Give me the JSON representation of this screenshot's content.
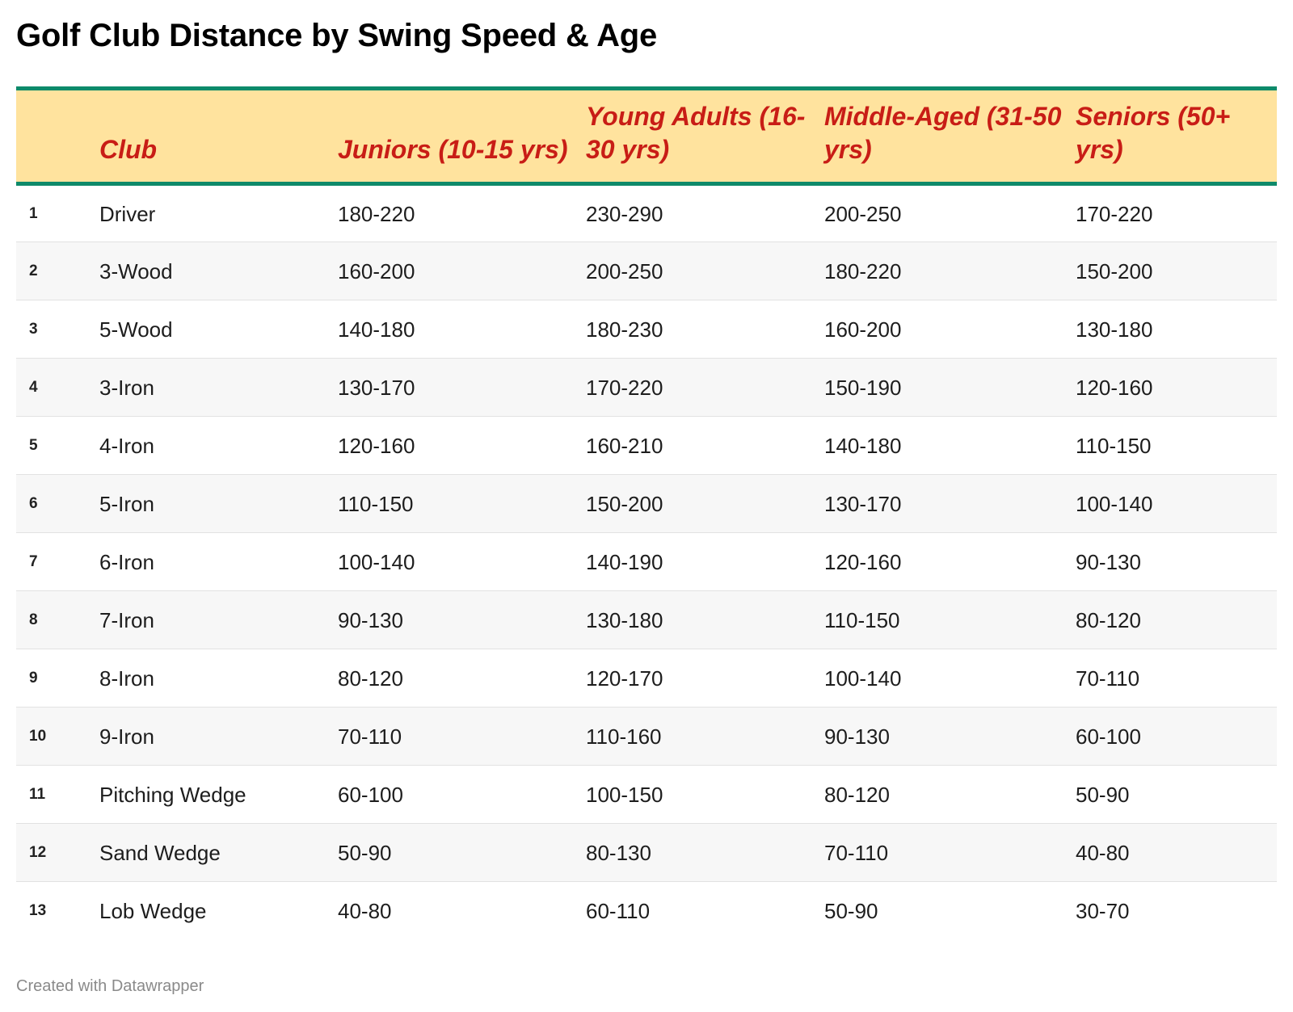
{
  "title": "Golf Club Distance by Swing Speed & Age",
  "credit": "Created with Datawrapper",
  "colors": {
    "header_background": "#ffe39e",
    "header_text": "#c81d16",
    "header_rule": "#0e8a6a",
    "row_stripe": "#f7f7f7"
  },
  "chart_data": {
    "type": "table",
    "title": "Golf Club Distance by Swing Speed & Age",
    "columns": [
      "",
      "Club",
      "Juniors (10-15 yrs)",
      "Young Adults (16-30 yrs)",
      "Middle-Aged (31-50 yrs)",
      "Seniors (50+ yrs)"
    ],
    "rows": [
      [
        "1",
        "Driver",
        "180-220",
        "230-290",
        "200-250",
        "170-220"
      ],
      [
        "2",
        "3-Wood",
        "160-200",
        "200-250",
        "180-220",
        "150-200"
      ],
      [
        "3",
        "5-Wood",
        "140-180",
        "180-230",
        "160-200",
        "130-180"
      ],
      [
        "4",
        "3-Iron",
        "130-170",
        "170-220",
        "150-190",
        "120-160"
      ],
      [
        "5",
        "4-Iron",
        "120-160",
        "160-210",
        "140-180",
        "110-150"
      ],
      [
        "6",
        "5-Iron",
        "110-150",
        "150-200",
        "130-170",
        "100-140"
      ],
      [
        "7",
        "6-Iron",
        "100-140",
        "140-190",
        "120-160",
        "90-130"
      ],
      [
        "8",
        "7-Iron",
        "90-130",
        "130-180",
        "110-150",
        "80-120"
      ],
      [
        "9",
        "8-Iron",
        "80-120",
        "120-170",
        "100-140",
        "70-110"
      ],
      [
        "10",
        "9-Iron",
        "70-110",
        "110-160",
        "90-130",
        "60-100"
      ],
      [
        "11",
        "Pitching Wedge",
        "60-100",
        "100-150",
        "80-120",
        "50-90"
      ],
      [
        "12",
        "Sand Wedge",
        "50-90",
        "80-130",
        "70-110",
        "40-80"
      ],
      [
        "13",
        "Lob Wedge",
        "40-80",
        "60-110",
        "50-90",
        "30-70"
      ]
    ]
  }
}
